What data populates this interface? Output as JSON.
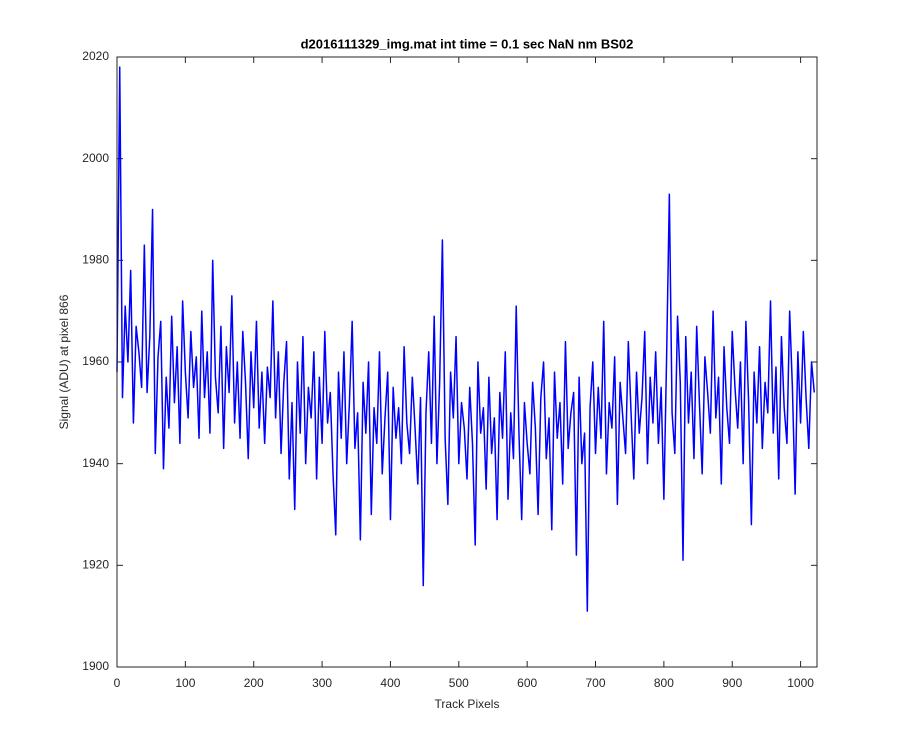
{
  "chart_data": {
    "type": "line",
    "title": "d2016111329_img.mat int time = 0.1 sec  NaN nm BS02",
    "x_label": "Track Pixels",
    "y_label": "Signal (ADU) at pixel 866",
    "xlim": [
      0,
      1024
    ],
    "ylim": [
      1900,
      2020
    ],
    "xticks": [
      0,
      100,
      200,
      300,
      400,
      500,
      600,
      700,
      800,
      900,
      1000
    ],
    "yticks": [
      1900,
      1920,
      1940,
      1960,
      1980,
      2000,
      2020
    ],
    "grid": false,
    "x": [
      0,
      4,
      8,
      12,
      16,
      20,
      24,
      28,
      32,
      36,
      40,
      44,
      48,
      52,
      56,
      60,
      64,
      68,
      72,
      76,
      80,
      84,
      88,
      92,
      96,
      100,
      104,
      108,
      112,
      116,
      120,
      124,
      128,
      132,
      136,
      140,
      144,
      148,
      152,
      156,
      160,
      164,
      168,
      172,
      176,
      180,
      184,
      188,
      192,
      196,
      200,
      204,
      208,
      212,
      216,
      220,
      224,
      228,
      232,
      236,
      240,
      244,
      248,
      252,
      256,
      260,
      264,
      268,
      272,
      276,
      280,
      284,
      288,
      292,
      296,
      300,
      304,
      308,
      312,
      316,
      320,
      324,
      328,
      332,
      336,
      340,
      344,
      348,
      352,
      356,
      360,
      364,
      368,
      372,
      376,
      380,
      384,
      388,
      392,
      396,
      400,
      404,
      408,
      412,
      416,
      420,
      424,
      428,
      432,
      436,
      440,
      444,
      448,
      452,
      456,
      460,
      464,
      468,
      472,
      476,
      480,
      484,
      488,
      492,
      496,
      500,
      504,
      508,
      512,
      516,
      520,
      524,
      528,
      532,
      536,
      540,
      544,
      548,
      552,
      556,
      560,
      564,
      568,
      572,
      576,
      580,
      584,
      588,
      592,
      596,
      600,
      604,
      608,
      612,
      616,
      620,
      624,
      628,
      632,
      636,
      640,
      644,
      648,
      652,
      656,
      660,
      664,
      668,
      672,
      676,
      680,
      684,
      688,
      692,
      696,
      700,
      704,
      708,
      712,
      716,
      720,
      724,
      728,
      732,
      736,
      740,
      744,
      748,
      752,
      756,
      760,
      764,
      768,
      772,
      776,
      780,
      784,
      788,
      792,
      796,
      800,
      804,
      808,
      812,
      816,
      820,
      824,
      828,
      832,
      836,
      840,
      844,
      848,
      852,
      856,
      860,
      864,
      868,
      872,
      876,
      880,
      884,
      888,
      892,
      896,
      900,
      904,
      908,
      912,
      916,
      920,
      924,
      928,
      932,
      936,
      940,
      944,
      948,
      952,
      956,
      960,
      964,
      968,
      972,
      976,
      980,
      984,
      988,
      992,
      996,
      1000,
      1004,
      1008,
      1012,
      1016,
      1020
    ],
    "series": [
      {
        "name": "signal",
        "color": "#0000ff",
        "values": [
          1958,
          2018,
          1953,
          1971,
          1960,
          1978,
          1948,
          1967,
          1962,
          1955,
          1983,
          1954,
          1965,
          1990,
          1942,
          1961,
          1968,
          1939,
          1957,
          1947,
          1969,
          1952,
          1963,
          1944,
          1972,
          1958,
          1949,
          1966,
          1955,
          1961,
          1945,
          1970,
          1953,
          1962,
          1946,
          1980,
          1957,
          1950,
          1967,
          1943,
          1963,
          1954,
          1973,
          1948,
          1960,
          1945,
          1966,
          1956,
          1941,
          1962,
          1951,
          1968,
          1947,
          1958,
          1944,
          1959,
          1953,
          1972,
          1949,
          1962,
          1942,
          1956,
          1964,
          1937,
          1952,
          1931,
          1960,
          1946,
          1965,
          1940,
          1955,
          1949,
          1962,
          1937,
          1957,
          1944,
          1966,
          1948,
          1954,
          1938,
          1926,
          1958,
          1945,
          1962,
          1940,
          1952,
          1968,
          1943,
          1950,
          1925,
          1956,
          1946,
          1960,
          1930,
          1951,
          1944,
          1962,
          1938,
          1949,
          1958,
          1929,
          1955,
          1945,
          1951,
          1940,
          1963,
          1948,
          1942,
          1957,
          1947,
          1936,
          1953,
          1916,
          1950,
          1962,
          1944,
          1969,
          1940,
          1956,
          1984,
          1945,
          1932,
          1958,
          1949,
          1965,
          1940,
          1952,
          1947,
          1937,
          1955,
          1944,
          1924,
          1960,
          1946,
          1951,
          1935,
          1957,
          1942,
          1949,
          1929,
          1954,
          1945,
          1962,
          1933,
          1950,
          1941,
          1971,
          1946,
          1929,
          1952,
          1944,
          1938,
          1956,
          1947,
          1930,
          1953,
          1960,
          1941,
          1949,
          1927,
          1958,
          1945,
          1952,
          1936,
          1964,
          1943,
          1950,
          1954,
          1922,
          1957,
          1940,
          1946,
          1911,
          1951,
          1960,
          1942,
          1955,
          1945,
          1968,
          1938,
          1952,
          1947,
          1961,
          1932,
          1956,
          1949,
          1942,
          1964,
          1950,
          1937,
          1958,
          1946,
          1953,
          1966,
          1940,
          1957,
          1948,
          1962,
          1944,
          1955,
          1933,
          1961,
          1993,
          1950,
          1942,
          1969,
          1956,
          1921,
          1965,
          1948,
          1958,
          1941,
          1967,
          1952,
          1938,
          1961,
          1954,
          1946,
          1970,
          1949,
          1957,
          1936,
          1963,
          1951,
          1944,
          1966,
          1955,
          1947,
          1960,
          1940,
          1968,
          1952,
          1928,
          1958,
          1948,
          1963,
          1943,
          1956,
          1950,
          1972,
          1946,
          1959,
          1937,
          1965,
          1951,
          1944,
          1970,
          1955,
          1934,
          1962,
          1948,
          1966,
          1953,
          1943,
          1960,
          1954
        ]
      }
    ]
  }
}
